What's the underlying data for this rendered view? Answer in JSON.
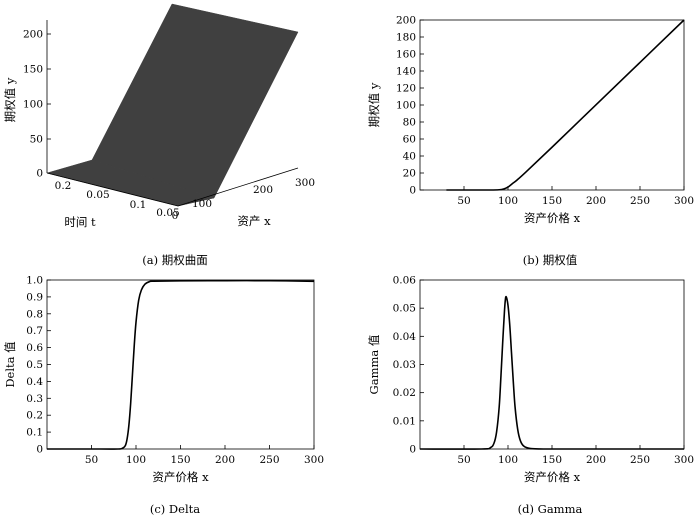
{
  "chart_data": [
    {
      "id": "a",
      "type": "surface3d",
      "caption": "(a)  期权曲面",
      "zlabel": "期权值 y",
      "tlabel": "时间 t",
      "xlabel": "资产 x",
      "z_ticks": [
        "0",
        "50",
        "100",
        "150",
        "200"
      ],
      "t_ticks": [
        "0.2",
        "0.05",
        "0.1",
        "0.05"
      ],
      "x_ticks": [
        "0",
        "100",
        "200",
        "300"
      ],
      "surface_color": "#404040"
    },
    {
      "id": "b",
      "type": "line",
      "caption": "(b)  期权值",
      "xlabel": "资产价格 x",
      "ylabel": "期权值 y",
      "xlim": [
        0,
        300
      ],
      "ylim": [
        0,
        200
      ],
      "x_ticks": [
        "50",
        "100",
        "150",
        "200",
        "250",
        "300"
      ],
      "y_ticks": [
        "0",
        "20",
        "40",
        "60",
        "80",
        "100",
        "120",
        "140",
        "160",
        "180",
        "200"
      ],
      "x": [
        30,
        60,
        80,
        90,
        95,
        100,
        105,
        110,
        120,
        150,
        200,
        250,
        300
      ],
      "y": [
        0,
        0,
        0,
        0.3,
        1.2,
        3.5,
        7.5,
        11.5,
        20.8,
        50.3,
        100.2,
        150.1,
        200
      ]
    },
    {
      "id": "c",
      "type": "line",
      "caption": "(c)  Delta",
      "xlabel": "资产价格 x",
      "ylabel": "Delta 值",
      "xlim": [
        0,
        300
      ],
      "ylim": [
        0,
        1
      ],
      "x_ticks": [
        "50",
        "100",
        "150",
        "200",
        "250",
        "300"
      ],
      "y_ticks": [
        "0",
        "0.1",
        "0.2",
        "0.3",
        "0.4",
        "0.5",
        "0.6",
        "0.7",
        "0.8",
        "0.9",
        "1.0"
      ],
      "x": [
        0,
        60,
        80,
        85,
        88,
        90,
        92,
        94,
        96,
        98,
        100,
        103,
        106,
        110,
        115,
        120,
        150,
        200,
        250,
        300
      ],
      "y": [
        0,
        0,
        0,
        0.005,
        0.02,
        0.06,
        0.14,
        0.27,
        0.44,
        0.61,
        0.75,
        0.88,
        0.94,
        0.975,
        0.99,
        0.993,
        0.995,
        0.996,
        0.996,
        0.992
      ]
    },
    {
      "id": "d",
      "type": "line",
      "caption": "(d)  Gamma",
      "xlabel": "资产价格 x",
      "ylabel": "Gamma 值",
      "xlim": [
        0,
        300
      ],
      "ylim": [
        0,
        0.06
      ],
      "x_ticks": [
        "50",
        "100",
        "150",
        "200",
        "250",
        "300"
      ],
      "y_ticks": [
        "0",
        "0.01",
        "0.02",
        "0.03",
        "0.04",
        "0.05",
        "0.06"
      ],
      "x": [
        0,
        70,
        80,
        84,
        87,
        90,
        92,
        94,
        96,
        97,
        98,
        100,
        102,
        104,
        106,
        108,
        111,
        114,
        118,
        125,
        140,
        200,
        300
      ],
      "y": [
        0,
        0,
        0.0005,
        0.002,
        0.006,
        0.015,
        0.026,
        0.038,
        0.049,
        0.053,
        0.054,
        0.051,
        0.044,
        0.034,
        0.024,
        0.015,
        0.007,
        0.003,
        0.001,
        0.0002,
        0,
        0,
        0
      ]
    }
  ]
}
